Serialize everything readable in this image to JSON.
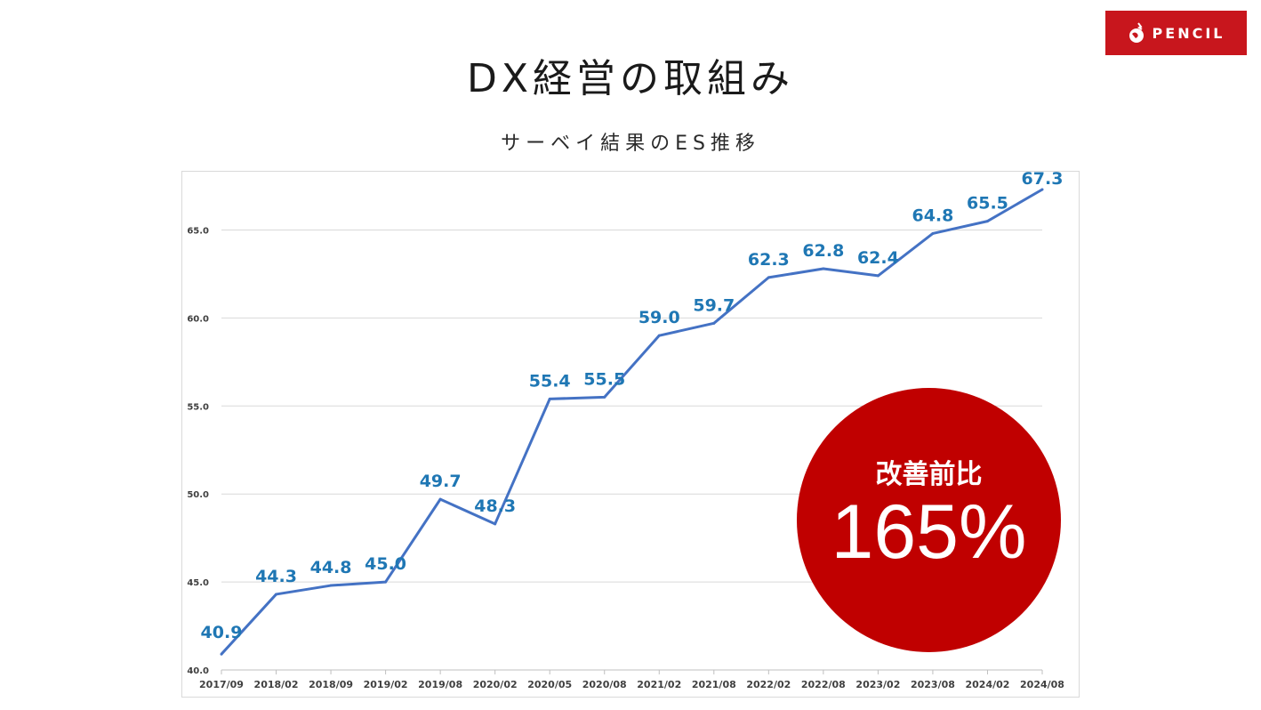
{
  "header": {
    "title": "DX経営の取組み",
    "subtitle": "サーベイ結果のES推移",
    "logo_text": "PENCIL",
    "brand_color": "#c8161d"
  },
  "badge": {
    "label": "改善前比",
    "value": "165%",
    "color": "#c00000"
  },
  "chart_data": {
    "type": "line",
    "title": "",
    "xlabel": "",
    "ylabel": "",
    "categories": [
      "2017/09",
      "2018/02",
      "2018/09",
      "2019/02",
      "2019/08",
      "2020/02",
      "2020/05",
      "2020/08",
      "2021/02",
      "2021/08",
      "2022/02",
      "2022/08",
      "2023/02",
      "2023/08",
      "2024/02",
      "2024/08"
    ],
    "values": [
      40.9,
      44.3,
      44.8,
      45.0,
      49.7,
      48.3,
      55.4,
      55.5,
      59.0,
      59.7,
      62.3,
      62.8,
      62.4,
      64.8,
      65.5,
      67.3
    ],
    "data_labels": [
      "40.9",
      "44.3",
      "44.8",
      "45.0",
      "49.7",
      "48.3",
      "55.4",
      "55.5",
      "59.0",
      "59.7",
      "62.3",
      "62.8",
      "62.4",
      "64.8",
      "65.5",
      "67.3"
    ],
    "y_ticks": [
      "40.0",
      "45.0",
      "50.0",
      "55.0",
      "60.0",
      "65.0"
    ],
    "ylim": [
      40,
      67.3
    ],
    "grid": true,
    "legend": "none",
    "line_color": "#4472c4",
    "label_color": "#1f77b4"
  }
}
